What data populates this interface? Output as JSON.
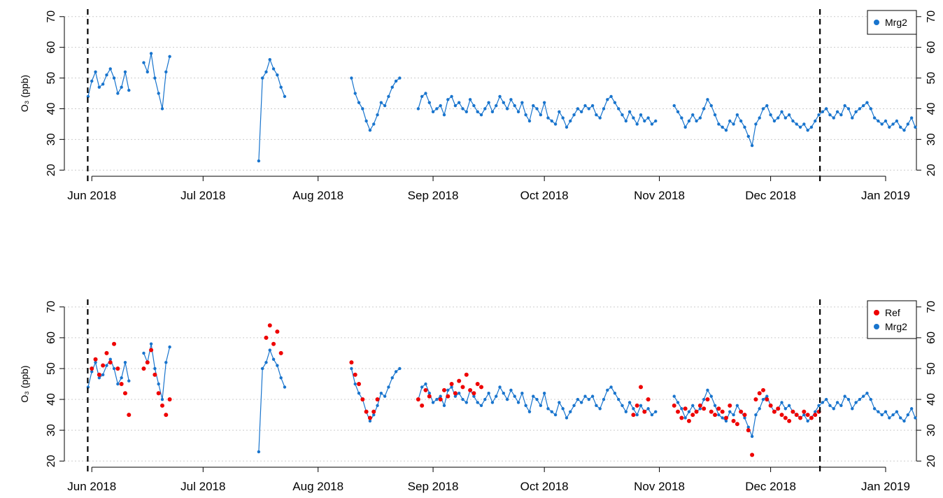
{
  "chart_data": [
    {
      "type": "line",
      "ylabel": "O₃ (ppb)",
      "legend": "topright",
      "grid": true,
      "xlim": [
        -7.4,
        222.3
      ],
      "ylim": [
        18,
        72
      ],
      "xticks": [
        {
          "value": 0,
          "label": "Jun 2018"
        },
        {
          "value": 30,
          "label": "Jul 2018"
        },
        {
          "value": 61,
          "label": "Aug 2018"
        },
        {
          "value": 92,
          "label": "Sep 2018"
        },
        {
          "value": 122,
          "label": "Oct 2018"
        },
        {
          "value": 153,
          "label": "Nov 2018"
        },
        {
          "value": 183,
          "label": "Dec 2018"
        },
        {
          "value": 214,
          "label": "Jan 2019"
        }
      ],
      "yticks": [
        20,
        30,
        40,
        50,
        60,
        70
      ],
      "vlines": [
        -1.1,
        196.3
      ],
      "x": [
        -1,
        0,
        1,
        2,
        3,
        4,
        5,
        6,
        7,
        8,
        9,
        10,
        12,
        14,
        15,
        16,
        17,
        18,
        19,
        20,
        21,
        30,
        45,
        46,
        47,
        48,
        49,
        50,
        51,
        52,
        60,
        70,
        71,
        72,
        73,
        74,
        75,
        76,
        77,
        78,
        79,
        80,
        81,
        82,
        83,
        86,
        88,
        89,
        90,
        91,
        92,
        93,
        94,
        95,
        96,
        97,
        98,
        99,
        100,
        101,
        102,
        103,
        104,
        105,
        106,
        107,
        108,
        109,
        110,
        111,
        112,
        113,
        114,
        115,
        116,
        117,
        118,
        119,
        120,
        121,
        122,
        123,
        124,
        125,
        126,
        127,
        128,
        129,
        130,
        131,
        132,
        133,
        134,
        135,
        136,
        137,
        138,
        139,
        140,
        141,
        142,
        143,
        144,
        145,
        146,
        147,
        148,
        149,
        150,
        151,
        152,
        155,
        157,
        158,
        159,
        160,
        161,
        162,
        163,
        164,
        165,
        166,
        167,
        168,
        169,
        170,
        171,
        172,
        173,
        174,
        175,
        176,
        177,
        178,
        179,
        180,
        181,
        182,
        183,
        184,
        185,
        186,
        187,
        188,
        189,
        190,
        191,
        192,
        193,
        194,
        195,
        196,
        197,
        198,
        199,
        200,
        201,
        202,
        203,
        204,
        205,
        206,
        207,
        208,
        209,
        210,
        211,
        212,
        213,
        214,
        215,
        216,
        217,
        218,
        219,
        220,
        221,
        222
      ],
      "series": [
        {
          "name": "Mrg2",
          "color": "#1874cd",
          "lines": true,
          "values": [
            44,
            49,
            52,
            47,
            48,
            51,
            53,
            50,
            45,
            47,
            52,
            46,
            null,
            55,
            52,
            58,
            50,
            45,
            40,
            52,
            57,
            null,
            23,
            50,
            52,
            56,
            53,
            51,
            47,
            44,
            null,
            50,
            45,
            42,
            40,
            36,
            33,
            35,
            38,
            42,
            41,
            44,
            47,
            49,
            50,
            null,
            40,
            44,
            45,
            42,
            39,
            40,
            41,
            38,
            43,
            44,
            41,
            42,
            40,
            39,
            43,
            41,
            39,
            38,
            40,
            42,
            39,
            41,
            44,
            42,
            40,
            43,
            41,
            39,
            42,
            38,
            36,
            41,
            40,
            38,
            42,
            37,
            36,
            35,
            39,
            37,
            34,
            36,
            38,
            40,
            39,
            41,
            40,
            41,
            38,
            37,
            40,
            43,
            44,
            42,
            40,
            38,
            36,
            39,
            37,
            35,
            38,
            36,
            37,
            35,
            36,
            null,
            41,
            39,
            37,
            34,
            36,
            38,
            36,
            37,
            40,
            43,
            41,
            38,
            35,
            34,
            33,
            36,
            35,
            38,
            36,
            34,
            31,
            28,
            35,
            37,
            40,
            41,
            38,
            36,
            37,
            39,
            37,
            38,
            36,
            35,
            34,
            35,
            33,
            34,
            36,
            38,
            39,
            40,
            38,
            37,
            39,
            38,
            41,
            40,
            37,
            39,
            40,
            41,
            42,
            40,
            37,
            36,
            35,
            36,
            34,
            35,
            36,
            34,
            33,
            35,
            37,
            34
          ]
        }
      ]
    },
    {
      "type": "line",
      "ylabel": "O₃ (ppb)",
      "legend": "topright",
      "grid": true,
      "xlim": [
        -7.4,
        222.3
      ],
      "ylim": [
        18,
        72
      ],
      "xticks": [
        {
          "value": 0,
          "label": "Jun 2018"
        },
        {
          "value": 30,
          "label": "Jul 2018"
        },
        {
          "value": 61,
          "label": "Aug 2018"
        },
        {
          "value": 92,
          "label": "Sep 2018"
        },
        {
          "value": 122,
          "label": "Oct 2018"
        },
        {
          "value": 153,
          "label": "Nov 2018"
        },
        {
          "value": 183,
          "label": "Dec 2018"
        },
        {
          "value": 214,
          "label": "Jan 2019"
        }
      ],
      "yticks": [
        20,
        30,
        40,
        50,
        60,
        70
      ],
      "vlines": [
        -1.1,
        196.3
      ],
      "x": [
        -1,
        0,
        1,
        2,
        3,
        4,
        5,
        6,
        7,
        8,
        9,
        10,
        12,
        14,
        15,
        16,
        17,
        18,
        19,
        20,
        21,
        30,
        45,
        46,
        47,
        48,
        49,
        50,
        51,
        52,
        60,
        70,
        71,
        72,
        73,
        74,
        75,
        76,
        77,
        78,
        79,
        80,
        81,
        82,
        83,
        86,
        88,
        89,
        90,
        91,
        92,
        93,
        94,
        95,
        96,
        97,
        98,
        99,
        100,
        101,
        102,
        103,
        104,
        105,
        106,
        107,
        108,
        109,
        110,
        111,
        112,
        113,
        114,
        115,
        116,
        117,
        118,
        119,
        120,
        121,
        122,
        123,
        124,
        125,
        126,
        127,
        128,
        129,
        130,
        131,
        132,
        133,
        134,
        135,
        136,
        137,
        138,
        139,
        140,
        141,
        142,
        143,
        144,
        145,
        146,
        147,
        148,
        149,
        150,
        151,
        152,
        155,
        157,
        158,
        159,
        160,
        161,
        162,
        163,
        164,
        165,
        166,
        167,
        168,
        169,
        170,
        171,
        172,
        173,
        174,
        175,
        176,
        177,
        178,
        179,
        180,
        181,
        182,
        183,
        184,
        185,
        186,
        187,
        188,
        189,
        190,
        191,
        192,
        193,
        194,
        195,
        196,
        197,
        198,
        199,
        200,
        201,
        202,
        203,
        204,
        205,
        206,
        207,
        208,
        209,
        210,
        211,
        212,
        213,
        214,
        215,
        216,
        217,
        218,
        219,
        220,
        221,
        222
      ],
      "series": [
        {
          "name": "Ref",
          "color": "#ee0000",
          "lines": false,
          "values": [
            null,
            50,
            53,
            48,
            51,
            55,
            52,
            58,
            50,
            45,
            42,
            35,
            null,
            50,
            52,
            56,
            48,
            42,
            38,
            35,
            40,
            null,
            null,
            null,
            60,
            64,
            58,
            62,
            55,
            null,
            null,
            52,
            48,
            45,
            40,
            36,
            34,
            36,
            40,
            null,
            null,
            null,
            null,
            null,
            null,
            null,
            40,
            38,
            43,
            41,
            null,
            null,
            40,
            43,
            41,
            45,
            42,
            46,
            44,
            48,
            43,
            42,
            45,
            44,
            null,
            null,
            null,
            null,
            null,
            null,
            null,
            null,
            null,
            null,
            null,
            null,
            null,
            null,
            null,
            null,
            null,
            null,
            null,
            null,
            null,
            null,
            null,
            null,
            null,
            null,
            null,
            null,
            null,
            null,
            null,
            null,
            null,
            null,
            null,
            null,
            null,
            null,
            null,
            null,
            35,
            38,
            44,
            36,
            40,
            null,
            null,
            null,
            38,
            36,
            34,
            37,
            33,
            35,
            36,
            38,
            37,
            40,
            36,
            35,
            37,
            36,
            34,
            38,
            33,
            32,
            36,
            35,
            30,
            22,
            40,
            42,
            43,
            40,
            38,
            36,
            37,
            35,
            34,
            33,
            36,
            35,
            34,
            36,
            35,
            34,
            35,
            36,
            null,
            null,
            null,
            null,
            null,
            null,
            null,
            null,
            null,
            null,
            null,
            null,
            null,
            null,
            null,
            null,
            null,
            null,
            null,
            null,
            null,
            null,
            null,
            null,
            null,
            null
          ]
        },
        {
          "name": "Mrg2",
          "color": "#1874cd",
          "lines": true,
          "values": [
            44,
            49,
            52,
            47,
            48,
            51,
            53,
            50,
            45,
            47,
            52,
            46,
            null,
            55,
            52,
            58,
            50,
            45,
            40,
            52,
            57,
            null,
            23,
            50,
            52,
            56,
            53,
            51,
            47,
            44,
            null,
            50,
            45,
            42,
            40,
            36,
            33,
            35,
            38,
            42,
            41,
            44,
            47,
            49,
            50,
            null,
            40,
            44,
            45,
            42,
            39,
            40,
            41,
            38,
            43,
            44,
            41,
            42,
            40,
            39,
            43,
            41,
            39,
            38,
            40,
            42,
            39,
            41,
            44,
            42,
            40,
            43,
            41,
            39,
            42,
            38,
            36,
            41,
            40,
            38,
            42,
            37,
            36,
            35,
            39,
            37,
            34,
            36,
            38,
            40,
            39,
            41,
            40,
            41,
            38,
            37,
            40,
            43,
            44,
            42,
            40,
            38,
            36,
            39,
            37,
            35,
            38,
            36,
            37,
            35,
            36,
            null,
            41,
            39,
            37,
            34,
            36,
            38,
            36,
            37,
            40,
            43,
            41,
            38,
            35,
            34,
            33,
            36,
            35,
            38,
            36,
            34,
            31,
            28,
            35,
            37,
            40,
            41,
            38,
            36,
            37,
            39,
            37,
            38,
            36,
            35,
            34,
            35,
            33,
            34,
            36,
            38,
            39,
            40,
            38,
            37,
            39,
            38,
            41,
            40,
            37,
            39,
            40,
            41,
            42,
            40,
            37,
            36,
            35,
            36,
            34,
            35,
            36,
            34,
            33,
            35,
            37,
            34
          ]
        }
      ]
    }
  ]
}
